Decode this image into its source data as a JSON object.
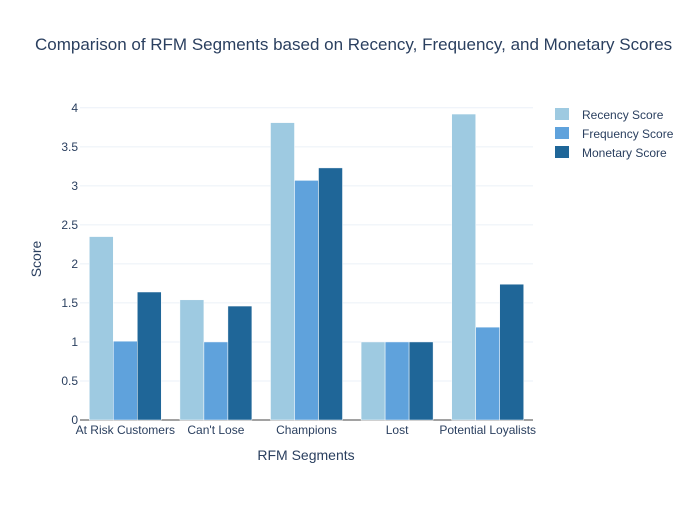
{
  "chart_data": {
    "type": "bar",
    "title": "Comparison of RFM Segments based on Recency, Frequency, and Monetary Scores",
    "xlabel": "RFM Segments",
    "ylabel": "Score",
    "categories": [
      "At Risk Customers",
      "Can't Lose",
      "Champions",
      "Lost",
      "Potential Loyalists"
    ],
    "series": [
      {
        "name": "Recency Score",
        "color": "#9ecae1",
        "values": [
          2.35,
          1.54,
          3.81,
          1.0,
          3.92
        ]
      },
      {
        "name": "Frequency Score",
        "color": "#5fa2dc",
        "values": [
          1.01,
          1.0,
          3.07,
          1.0,
          1.19
        ]
      },
      {
        "name": "Monetary Score",
        "color": "#1f6698",
        "values": [
          1.64,
          1.46,
          3.23,
          1.0,
          1.74
        ]
      }
    ],
    "ylim": [
      0,
      4.1
    ],
    "yticks": [
      "0",
      "0.5",
      "1",
      "1.5",
      "2",
      "2.5",
      "3",
      "3.5",
      "4"
    ],
    "grid": true,
    "legend_position": "top-right",
    "colors": {
      "text": "#2a3f5f",
      "grid": "#ebf0f8",
      "background": "#ffffff"
    }
  }
}
